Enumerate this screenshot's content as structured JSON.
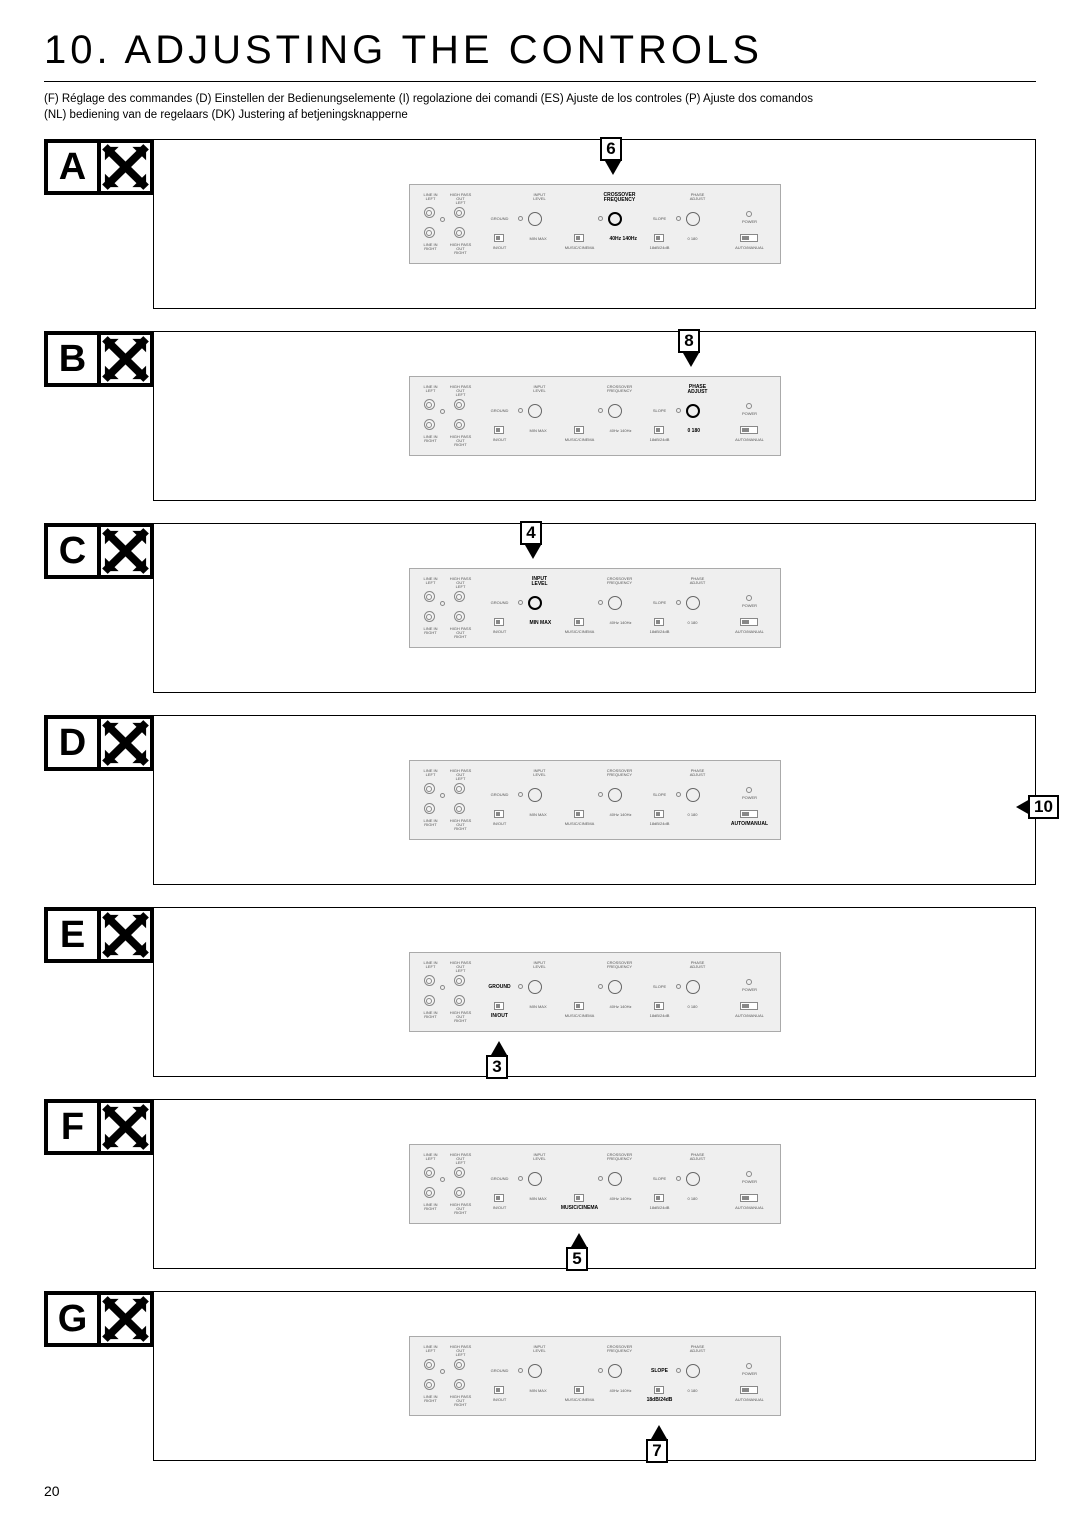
{
  "page_number": "20",
  "title": "10.  ADJUSTING THE CONTROLS",
  "translations_line1": "(F) Réglage des commandes   (D) Einstellen der Bedienungselemente   (I) regolazione dei comandi   (ES) Ajuste de los controles   (P) Ajuste dos comandos",
  "translations_line2": "(NL) bediening van de regelaars   (DK) Justering af betjeningsknapperne",
  "panel_labels": {
    "line_in_left": "LINE IN\nLEFT",
    "high_pass_out_left": "HIGH PASS\nOUT\nLEFT",
    "line_in_right": "LINE IN\nRIGHT",
    "high_pass_out_right": "HIGH PASS\nOUT\nRIGHT",
    "ground": "GROUND",
    "in_out": "IN/OUT",
    "input_level": "INPUT\nLEVEL",
    "input_range": "MIN   MAX",
    "music_cinema": "MUSIC/CINEMA",
    "crossover_frequency": "CROSSOVER\nFREQUENCY",
    "xover_range": "40Hz 140Hz",
    "slope": "SLOPE",
    "slope_range": "18dB/24dB",
    "phase_adjust": "PHASE\nADJUST",
    "phase_range": "0        180",
    "power": "POWER",
    "auto_manual": "AUTO/MANUAL"
  },
  "rows": [
    {
      "letter": "A",
      "callout": "6",
      "callout_pos": "top",
      "highlight": "crossover",
      "callout_target": "crossover"
    },
    {
      "letter": "B",
      "callout": "8",
      "callout_pos": "top",
      "highlight": "phase",
      "callout_target": "phase"
    },
    {
      "letter": "C",
      "callout": "4",
      "callout_pos": "top",
      "highlight": "input",
      "callout_target": "input"
    },
    {
      "letter": "D",
      "callout": "10",
      "callout_pos": "right",
      "highlight": "automanual",
      "callout_target": "automanual"
    },
    {
      "letter": "E",
      "callout": "3",
      "callout_pos": "bottom",
      "highlight": "ground",
      "callout_target": "ground"
    },
    {
      "letter": "F",
      "callout": "5",
      "callout_pos": "bottom",
      "highlight": "musiccinema",
      "callout_target": "musiccinema"
    },
    {
      "letter": "G",
      "callout": "7",
      "callout_pos": "bottom",
      "highlight": "slope",
      "callout_target": "slope"
    }
  ],
  "colors": {
    "panel_bg": "#efefef",
    "border": "#000000",
    "muted": "#888888"
  }
}
